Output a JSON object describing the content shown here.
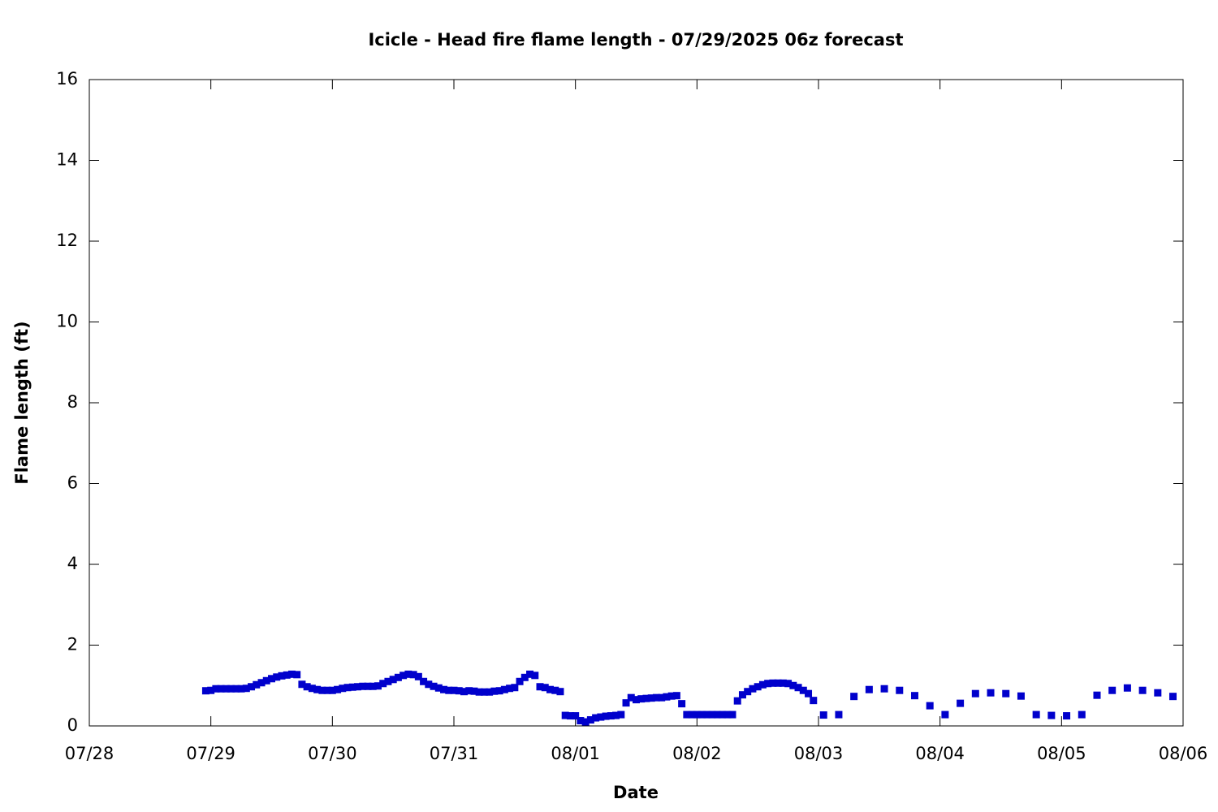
{
  "chart_data": {
    "type": "scatter",
    "title": "Icicle - Head fire flame length - 07/29/2025 06z forecast",
    "x_label": "Date",
    "y_label": "Flame length (ft)",
    "color": "#0000cc",
    "marker": "square",
    "xlim": [
      0,
      216
    ],
    "ylim": [
      0,
      16
    ],
    "xticks": [
      {
        "value": 0,
        "label": "07/28"
      },
      {
        "value": 24,
        "label": "07/29"
      },
      {
        "value": 48,
        "label": "07/30"
      },
      {
        "value": 72,
        "label": "07/31"
      },
      {
        "value": 96,
        "label": "08/01"
      },
      {
        "value": 120,
        "label": "08/02"
      },
      {
        "value": 144,
        "label": "08/03"
      },
      {
        "value": 168,
        "label": "08/04"
      },
      {
        "value": 192,
        "label": "08/05"
      },
      {
        "value": 216,
        "label": "08/06"
      }
    ],
    "yticks": [
      0,
      2,
      4,
      6,
      8,
      10,
      12,
      14,
      16
    ],
    "x": [
      23,
      24,
      25,
      26,
      27,
      28,
      29,
      30,
      31,
      32,
      33,
      34,
      35,
      36,
      37,
      38,
      39,
      40,
      41,
      42,
      43,
      44,
      45,
      46,
      47,
      48,
      49,
      50,
      51,
      52,
      53,
      54,
      55,
      56,
      57,
      58,
      59,
      60,
      61,
      62,
      63,
      64,
      65,
      66,
      67,
      68,
      69,
      70,
      71,
      72,
      73,
      74,
      75,
      76,
      77,
      78,
      79,
      80,
      81,
      82,
      83,
      84,
      85,
      86,
      87,
      88,
      89,
      90,
      91,
      92,
      93,
      94,
      95,
      96,
      97,
      98,
      99,
      100,
      101,
      102,
      103,
      104,
      105,
      106,
      107,
      108,
      109,
      110,
      111,
      112,
      113,
      114,
      115,
      116,
      117,
      118,
      119,
      120,
      121,
      122,
      123,
      124,
      125,
      126,
      127,
      128,
      129,
      130,
      131,
      132,
      133,
      134,
      135,
      136,
      137,
      138,
      139,
      140,
      141,
      142,
      143,
      145,
      148,
      151,
      154,
      157,
      160,
      163,
      166,
      169,
      172,
      175,
      178,
      181,
      184,
      187,
      190,
      193,
      196,
      199,
      202,
      205,
      208,
      211,
      214
    ],
    "values": [
      0.87,
      0.88,
      0.92,
      0.92,
      0.92,
      0.92,
      0.92,
      0.92,
      0.93,
      0.97,
      1.02,
      1.07,
      1.12,
      1.17,
      1.21,
      1.24,
      1.26,
      1.28,
      1.27,
      1.03,
      0.97,
      0.93,
      0.9,
      0.88,
      0.88,
      0.88,
      0.9,
      0.93,
      0.95,
      0.96,
      0.97,
      0.98,
      0.98,
      0.98,
      0.99,
      1.05,
      1.1,
      1.15,
      1.2,
      1.25,
      1.28,
      1.27,
      1.22,
      1.1,
      1.03,
      0.98,
      0.94,
      0.9,
      0.88,
      0.88,
      0.87,
      0.85,
      0.87,
      0.86,
      0.84,
      0.84,
      0.84,
      0.86,
      0.87,
      0.9,
      0.93,
      0.95,
      1.1,
      1.2,
      1.28,
      1.25,
      0.97,
      0.95,
      0.9,
      0.88,
      0.85,
      0.26,
      0.25,
      0.25,
      0.13,
      0.1,
      0.15,
      0.2,
      0.22,
      0.24,
      0.25,
      0.26,
      0.28,
      0.57,
      0.7,
      0.65,
      0.67,
      0.68,
      0.69,
      0.7,
      0.7,
      0.72,
      0.74,
      0.75,
      0.55,
      0.28,
      0.28,
      0.28,
      0.28,
      0.28,
      0.28,
      0.28,
      0.28,
      0.28,
      0.28,
      0.62,
      0.77,
      0.85,
      0.92,
      0.97,
      1.02,
      1.05,
      1.06,
      1.06,
      1.06,
      1.05,
      1.0,
      0.95,
      0.88,
      0.8,
      0.63,
      0.27,
      0.28,
      0.73,
      0.9,
      0.92,
      0.88,
      0.75,
      0.5,
      0.28,
      0.56,
      0.8,
      0.82,
      0.8,
      0.74,
      0.28,
      0.26,
      0.25,
      0.28,
      0.76,
      0.88,
      0.94,
      0.88,
      0.82,
      0.73
    ]
  }
}
